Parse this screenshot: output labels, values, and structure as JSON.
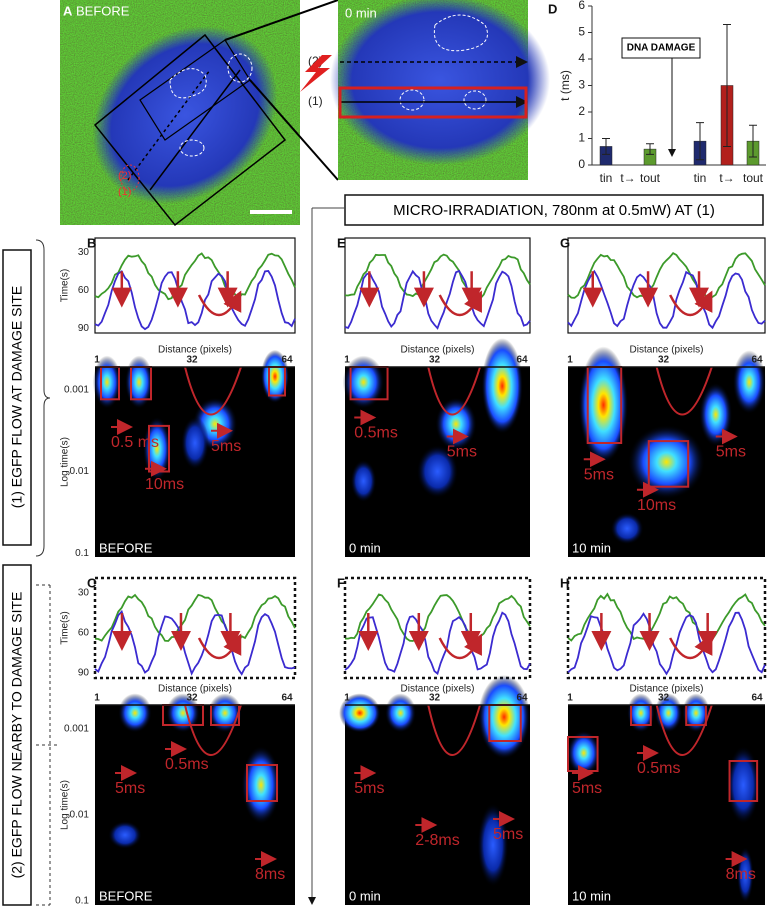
{
  "panel_a": {
    "label": "A",
    "before": "BEFORE",
    "zoom": "0 min",
    "line_labels": [
      "(2)",
      "(1)"
    ]
  },
  "chart_data": {
    "type": "bar",
    "label": "D",
    "ylabel": "t (ms)",
    "categories": [
      "tin",
      "t→",
      "tout",
      "tin",
      "t→",
      "tout"
    ],
    "values": [
      0.7,
      null,
      0.6,
      0.9,
      3.0,
      0.9
    ],
    "errors": [
      0.3,
      null,
      0.2,
      0.7,
      2.3,
      0.6
    ],
    "colors": [
      "#1f2a6e",
      null,
      "#5c9a2e",
      "#1f2a6e",
      "#b2201c",
      "#5c9a2e"
    ],
    "ylim": [
      0,
      6
    ],
    "yticks": [
      0,
      1,
      2,
      3,
      4,
      5,
      6
    ],
    "annotation": "DNA DAMAGE"
  },
  "banner": "MICRO-IRRADIATION, 780nm at 0.5mW) AT (1)",
  "side_labels": [
    "(1) EGFP FLOW AT DAMAGE SITE",
    "(2) EGFP FLOW NEARBY TO DAMAGE SITE"
  ],
  "trace_axis": {
    "ylabel": "Time(s)",
    "yticks": [
      "30",
      "60",
      "90"
    ],
    "xlabel": "Distance (pixels)"
  },
  "heatmap_axis": {
    "ylabel": "Log time(s)",
    "yticks": [
      "0.001",
      "0.01",
      "0.1"
    ],
    "xticks": [
      "1",
      "32",
      "64"
    ]
  },
  "panels": [
    {
      "label": "B",
      "condition": "BEFORE",
      "annotations": [
        "0.5 ms",
        "10ms",
        "5ms"
      ]
    },
    {
      "label": "E",
      "condition": "0 min",
      "annotations": [
        "0.5ms",
        "5ms"
      ]
    },
    {
      "label": "G",
      "condition": "10 min",
      "annotations": [
        "5ms",
        "10ms",
        "5ms"
      ]
    },
    {
      "label": "C",
      "condition": "BEFORE",
      "annotations": [
        "5ms",
        "0.5ms",
        "8ms"
      ]
    },
    {
      "label": "F",
      "condition": "0 min",
      "annotations": [
        "5ms",
        "2-8ms",
        "5ms"
      ]
    },
    {
      "label": "H",
      "condition": "10 min",
      "annotations": [
        "5ms",
        "0.5ms",
        "8ms"
      ]
    }
  ]
}
